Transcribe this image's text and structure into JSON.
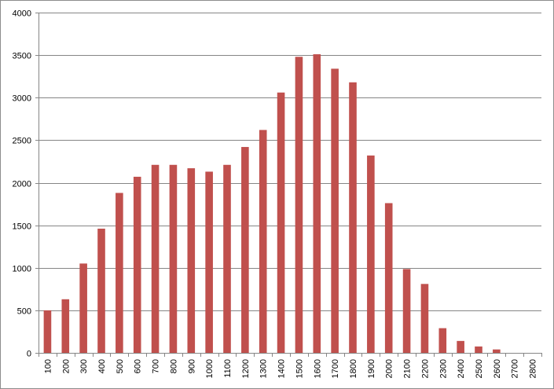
{
  "chart_data": {
    "type": "bar",
    "title": "",
    "xlabel": "",
    "ylabel": "",
    "ylim": [
      0,
      4000
    ],
    "yticks": [
      0,
      500,
      1000,
      1500,
      2000,
      2500,
      3000,
      3500,
      4000
    ],
    "grid": true,
    "legend": "none",
    "colors": {
      "bar": "#c0504d",
      "grid": "#868686",
      "axis": "#868686"
    },
    "categories": [
      "100",
      "200",
      "300",
      "400",
      "500",
      "600",
      "700",
      "800",
      "900",
      "1000",
      "1100",
      "1200",
      "1300",
      "1400",
      "1500",
      "1600",
      "1700",
      "1800",
      "1900",
      "2000",
      "2100",
      "2200",
      "2300",
      "2400",
      "2500",
      "2600",
      "2700",
      "2800"
    ],
    "series": [
      {
        "values": [
          500,
          630,
          1050,
          1460,
          1880,
          2070,
          2210,
          2210,
          2170,
          2130,
          2210,
          2420,
          2620,
          3060,
          3480,
          3510,
          3340,
          3180,
          2320,
          1760,
          985,
          810,
          290,
          140,
          75,
          40,
          0,
          0
        ]
      }
    ]
  }
}
